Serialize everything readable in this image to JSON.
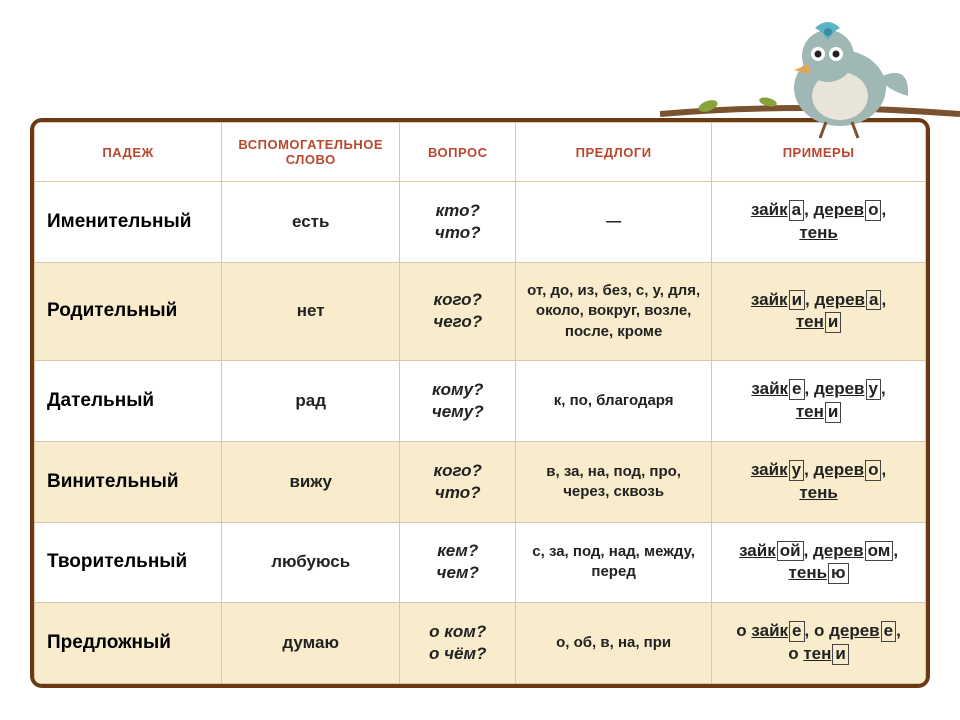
{
  "headers": {
    "c1": "ПАДЕЖ",
    "c2": "ВСПОМОГАТЕЛЬНОЕ СЛОВО",
    "c3": "ВОПРОС",
    "c4": "ПРЕДЛОГИ",
    "c5": "ПРИМЕРЫ"
  },
  "col_widths": {
    "c1": "21%",
    "c2": "20%",
    "c3": "13%",
    "c4": "22%",
    "c5": "24%"
  },
  "colors": {
    "frame_border": "#6b3a14",
    "cell_border": "#d9c9a9",
    "header_text": "#b8472e",
    "shaded_row_bg": "#f8eccc",
    "plain_row_bg": "#ffffff",
    "text": "#222222"
  },
  "rows": [
    {
      "case": "Именительный",
      "aux": "есть",
      "question": "кто?\nчто?",
      "prepositions": "—",
      "examples": [
        {
          "pre": "",
          "stem": "зайк",
          "end": "а",
          "post": ", "
        },
        {
          "pre": "",
          "stem": "дерев",
          "end": "о",
          "post": ","
        },
        {
          "break": true
        },
        {
          "pre": "",
          "stem": "тень",
          "end": "",
          "post": ""
        }
      ],
      "shaded": false
    },
    {
      "case": "Родительный",
      "aux": "нет",
      "question": "кого?\nчего?",
      "prepositions": "от, до, из, без, с, у, для, около, вокруг, возле, после, кроме",
      "examples": [
        {
          "pre": "",
          "stem": "зайк",
          "end": "и",
          "post": ", "
        },
        {
          "pre": "",
          "stem": "дерев",
          "end": "а",
          "post": ","
        },
        {
          "break": true
        },
        {
          "pre": "",
          "stem": "тен",
          "end": "и",
          "post": ""
        }
      ],
      "shaded": true
    },
    {
      "case": "Дательный",
      "aux": "рад",
      "question": "кому?\nчему?",
      "prepositions": "к, по, благодаря",
      "examples": [
        {
          "pre": "",
          "stem": "зайк",
          "end": "е",
          "post": ", "
        },
        {
          "pre": "",
          "stem": "дерев",
          "end": "у",
          "post": ","
        },
        {
          "break": true
        },
        {
          "pre": "",
          "stem": "тен",
          "end": "и",
          "post": ""
        }
      ],
      "shaded": false
    },
    {
      "case": "Винительный",
      "aux": "вижу",
      "question": "кого?\nчто?",
      "prepositions": "в, за, на, под, про, через, сквозь",
      "examples": [
        {
          "pre": "",
          "stem": "зайк",
          "end": "у",
          "post": ", "
        },
        {
          "pre": "",
          "stem": "дерев",
          "end": "о",
          "post": ","
        },
        {
          "break": true
        },
        {
          "pre": "",
          "stem": "тень",
          "end": "",
          "post": ""
        }
      ],
      "shaded": true
    },
    {
      "case": "Творительный",
      "aux": "любуюсь",
      "question": "кем?\nчем?",
      "prepositions": "с, за, под, над, между, перед",
      "examples": [
        {
          "pre": "",
          "stem": "зайк",
          "end": "ой",
          "post": ", "
        },
        {
          "pre": "",
          "stem": "дерев",
          "end": "ом",
          "post": ","
        },
        {
          "break": true
        },
        {
          "pre": "",
          "stem": "тень",
          "end": "ю",
          "post": ""
        }
      ],
      "shaded": false
    },
    {
      "case": "Предложный",
      "aux": "думаю",
      "question": "о ком?\nо чём?",
      "prepositions": "о, об, в, на, при",
      "examples": [
        {
          "pre": "о ",
          "stem": "зайк",
          "end": "е",
          "post": ", "
        },
        {
          "pre": "о ",
          "stem": "дерев",
          "end": "е",
          "post": ","
        },
        {
          "break": true
        },
        {
          "pre": "о ",
          "stem": "тен",
          "end": "и",
          "post": ""
        }
      ],
      "shaded": true
    }
  ],
  "mascot": {
    "body_color": "#9fb7b5",
    "belly_color": "#e8e4d8",
    "bow_color": "#5ab3c9",
    "beak_color": "#e6a54a",
    "branch_color": "#7a5230",
    "leaf_color": "#8aa23a"
  }
}
